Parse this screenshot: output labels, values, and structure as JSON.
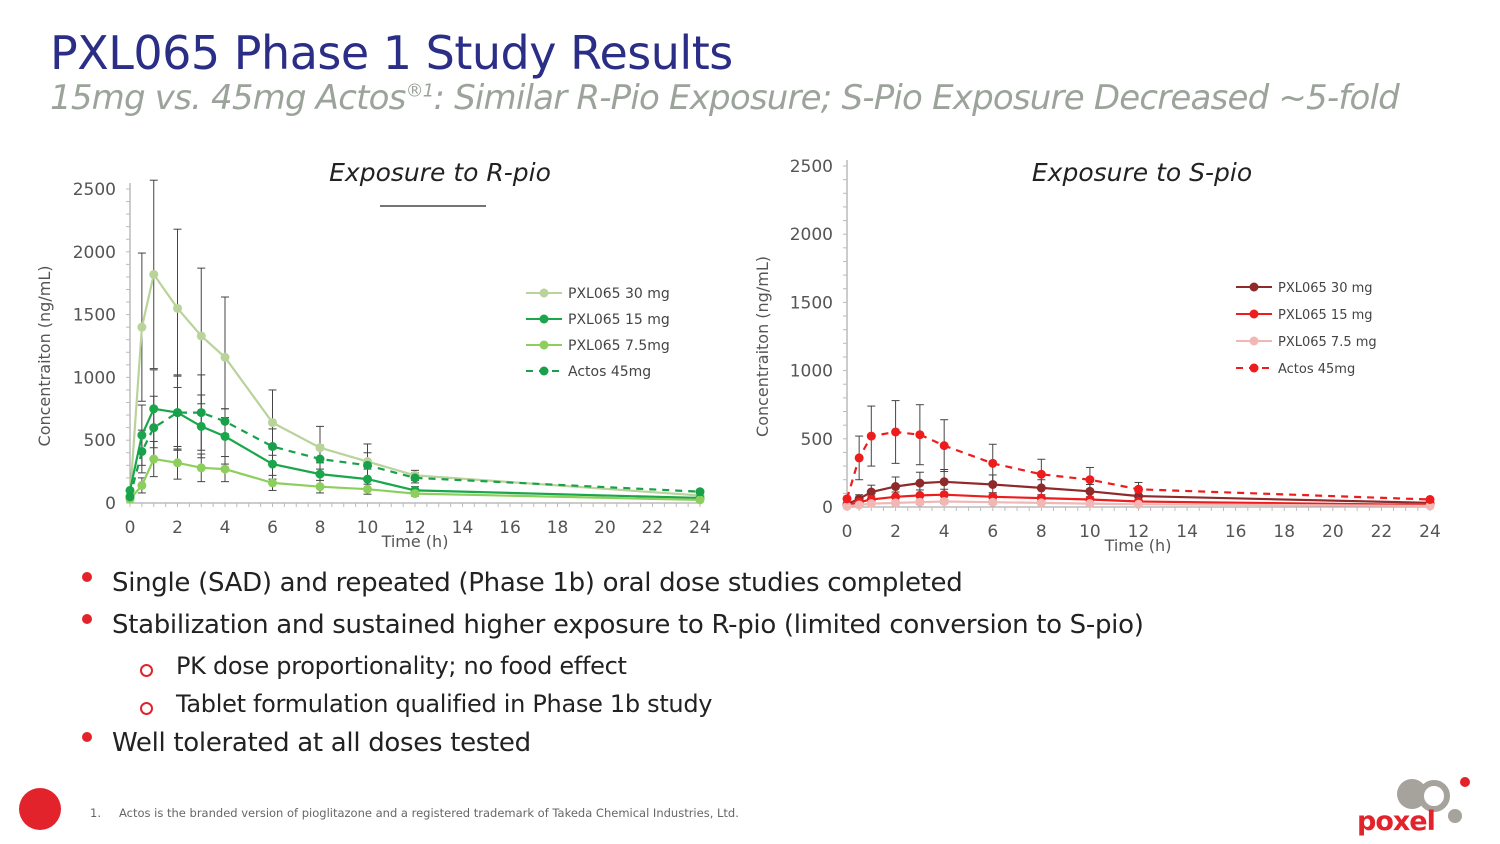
{
  "header": {
    "title": "PXL065 Phase 1 Study Results",
    "subtitle_main": "15mg vs. 45mg Actos",
    "subtitle_sup": "®1",
    "subtitle_rest": ": Similar R-Pio Exposure; S-Pio Exposure Decreased ~5-fold"
  },
  "chart_data": [
    {
      "type": "line",
      "title": "Exposure to R-pio",
      "xlabel": "Time (h)",
      "ylabel": "Concentraiton (ng/mL)",
      "xlim": [
        0,
        24
      ],
      "ylim": [
        0,
        2500
      ],
      "x_ticks": [
        0,
        2,
        4,
        6,
        8,
        10,
        12,
        14,
        16,
        18,
        20,
        22,
        24
      ],
      "y_ticks": [
        0,
        500,
        1000,
        1500,
        2000,
        2500
      ],
      "legend_position": "right",
      "series": [
        {
          "name": "PXL065 30 mg",
          "color": "#b9d39a",
          "dashed": false,
          "x": [
            0,
            0.5,
            1,
            2,
            3,
            4,
            6,
            8,
            10,
            12,
            24
          ],
          "y": [
            50,
            1400,
            1820,
            1550,
            1330,
            1160,
            640,
            440,
            330,
            220,
            60
          ],
          "err": [
            0,
            590,
            750,
            630,
            540,
            480,
            260,
            170,
            140,
            40,
            0
          ]
        },
        {
          "name": "PXL065 15 mg",
          "color": "#1aa64a",
          "dashed": false,
          "x": [
            0,
            0.5,
            1,
            2,
            3,
            4,
            6,
            8,
            10,
            12,
            24
          ],
          "y": [
            100,
            540,
            750,
            720,
            610,
            530,
            310,
            230,
            190,
            100,
            40
          ],
          "err": [
            0,
            240,
            310,
            290,
            250,
            220,
            120,
            90,
            80,
            30,
            0
          ]
        },
        {
          "name": "PXL065 7.5mg",
          "color": "#8dcf5c",
          "dashed": false,
          "x": [
            0,
            0.5,
            1,
            2,
            3,
            4,
            6,
            8,
            10,
            12,
            24
          ],
          "y": [
            30,
            140,
            350,
            320,
            280,
            270,
            160,
            130,
            110,
            75,
            25
          ],
          "err": [
            0,
            60,
            140,
            130,
            110,
            100,
            60,
            50,
            40,
            20,
            0
          ]
        },
        {
          "name": "Actos 45mg",
          "color": "#18a14a",
          "dashed": true,
          "x": [
            0,
            0.5,
            1,
            2,
            3,
            4,
            6,
            8,
            10,
            12,
            24
          ],
          "y": [
            50,
            410,
            600,
            720,
            720,
            650,
            450,
            350,
            300,
            200,
            90
          ],
          "err": [
            0,
            170,
            250,
            300,
            300,
            100,
            140,
            110,
            100,
            40,
            0
          ]
        }
      ]
    },
    {
      "type": "line",
      "title": "Exposure to S-pio",
      "xlabel": "Time (h)",
      "ylabel": "Concentraiton (ng/mL)",
      "xlim": [
        0,
        24
      ],
      "ylim": [
        0,
        2500
      ],
      "x_ticks": [
        0,
        2,
        4,
        6,
        8,
        10,
        12,
        14,
        16,
        18,
        20,
        22,
        24
      ],
      "y_ticks": [
        0,
        500,
        1000,
        1500,
        2000,
        2500
      ],
      "legend_position": "right",
      "series": [
        {
          "name": "PXL065 30 mg",
          "color": "#8e2a2a",
          "dashed": false,
          "x": [
            0,
            0.5,
            1,
            2,
            3,
            4,
            6,
            8,
            10,
            12,
            24
          ],
          "y": [
            20,
            60,
            110,
            150,
            175,
            185,
            165,
            140,
            115,
            80,
            30
          ],
          "err": [
            0,
            30,
            50,
            70,
            80,
            90,
            70,
            60,
            50,
            30,
            0
          ]
        },
        {
          "name": "PXL065 15 mg",
          "color": "#ee1c1c",
          "dashed": false,
          "x": [
            0,
            0.5,
            1,
            2,
            3,
            4,
            6,
            8,
            10,
            12,
            24
          ],
          "y": [
            10,
            35,
            55,
            75,
            85,
            90,
            75,
            65,
            55,
            40,
            15
          ],
          "err": [
            0,
            20,
            25,
            35,
            40,
            40,
            30,
            25,
            20,
            15,
            0
          ]
        },
        {
          "name": "PXL065 7.5 mg",
          "color": "#f0b7b5",
          "dashed": false,
          "x": [
            0,
            0.5,
            1,
            2,
            3,
            4,
            6,
            8,
            10,
            12,
            24
          ],
          "y": [
            5,
            15,
            25,
            30,
            35,
            40,
            35,
            30,
            25,
            20,
            8
          ],
          "err": [
            0,
            10,
            10,
            15,
            15,
            15,
            15,
            10,
            10,
            8,
            0
          ]
        },
        {
          "name": "Actos 45mg",
          "color": "#ee1c1c",
          "dashed": true,
          "x": [
            0,
            0.5,
            1,
            2,
            3,
            4,
            6,
            8,
            10,
            12,
            24
          ],
          "y": [
            60,
            360,
            520,
            550,
            530,
            450,
            320,
            240,
            200,
            130,
            55
          ],
          "err": [
            0,
            160,
            220,
            230,
            220,
            190,
            140,
            110,
            90,
            50,
            0
          ]
        }
      ]
    }
  ],
  "bullets": [
    {
      "level": 1,
      "text": "Single (SAD) and repeated (Phase 1b) oral dose studies completed"
    },
    {
      "level": 1,
      "text": "Stabilization and sustained higher exposure to R-pio (limited conversion to S-pio)"
    },
    {
      "level": 2,
      "text": "PK dose proportionality; no food effect"
    },
    {
      "level": 2,
      "text": "Tablet formulation qualified in Phase 1b study"
    },
    {
      "level": 1,
      "text": "Well tolerated at all doses tested"
    }
  ],
  "footnote": {
    "number": "1.",
    "text": "Actos is the branded version of pioglitazone and a registered trademark of Takeda Chemical Industries, Ltd."
  },
  "logo": {
    "text": "poxel"
  }
}
